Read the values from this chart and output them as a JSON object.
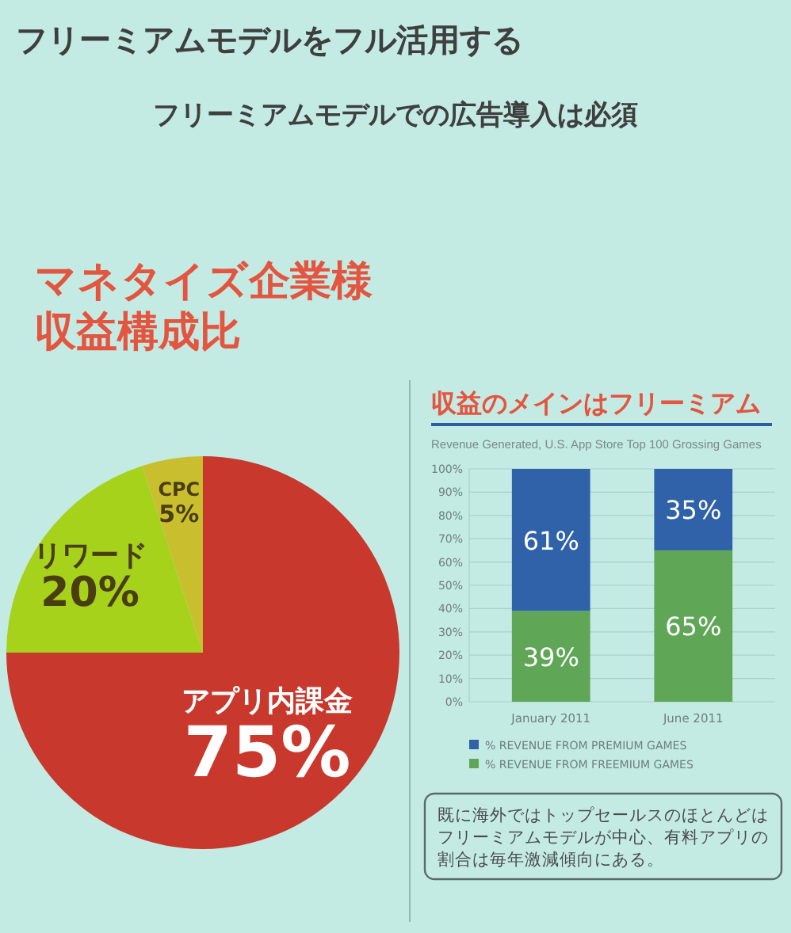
{
  "chart_data": [
    {
      "type": "other",
      "title": "フリーミアムモデルをフル活用する",
      "subtitle": "フリーミアムモデルでの広告導入は必須"
    },
    {
      "type": "pie",
      "title": "マネタイズ企業様収益構成比",
      "categories": [
        "アプリ内課金",
        "リワード",
        "CPC"
      ],
      "values": [
        75,
        20,
        5
      ],
      "colors": [
        "#c8382c",
        "#a6d21c",
        "#c9bf2e"
      ],
      "value_labels": [
        "75%",
        "20%",
        "5%"
      ]
    },
    {
      "type": "bar",
      "title": "収益のメインはフリーミアム",
      "subtitle": "Revenue Generated, U.S. App Store Top 100 Grossing Games",
      "categories": [
        "January 2011",
        "June 2011"
      ],
      "stacked": true,
      "series": [
        {
          "name": "% REVENUE FROM FREEMIUM GAMES",
          "color": "#5fa657",
          "values": [
            39,
            65
          ],
          "value_labels": [
            "39%",
            "65%"
          ]
        },
        {
          "name": "% REVENUE FROM PREMIUM GAMES",
          "color": "#2f62a8",
          "values": [
            61,
            35
          ],
          "value_labels": [
            "61%",
            "35%"
          ]
        }
      ],
      "ylim": [
        0,
        100
      ],
      "yticks": [
        {
          "value": 0,
          "label": "0%"
        },
        {
          "value": 10,
          "label": "10%"
        },
        {
          "value": 20,
          "label": "20%"
        },
        {
          "value": 30,
          "label": "30%"
        },
        {
          "value": 40,
          "label": "40%"
        },
        {
          "value": 50,
          "label": "50%"
        },
        {
          "value": 60,
          "label": "60%"
        },
        {
          "value": 70,
          "label": "70%"
        },
        {
          "value": 80,
          "label": "80%"
        },
        {
          "value": 90,
          "label": "90%"
        },
        {
          "value": 100,
          "label": "100%"
        }
      ],
      "grid": "y",
      "legend": "bottom",
      "annotations": [
        "既に海外ではトップセールスのほとんどはフリーミアムモデルが中心、有料アプリの割合は毎年激減傾向にある。"
      ]
    }
  ]
}
